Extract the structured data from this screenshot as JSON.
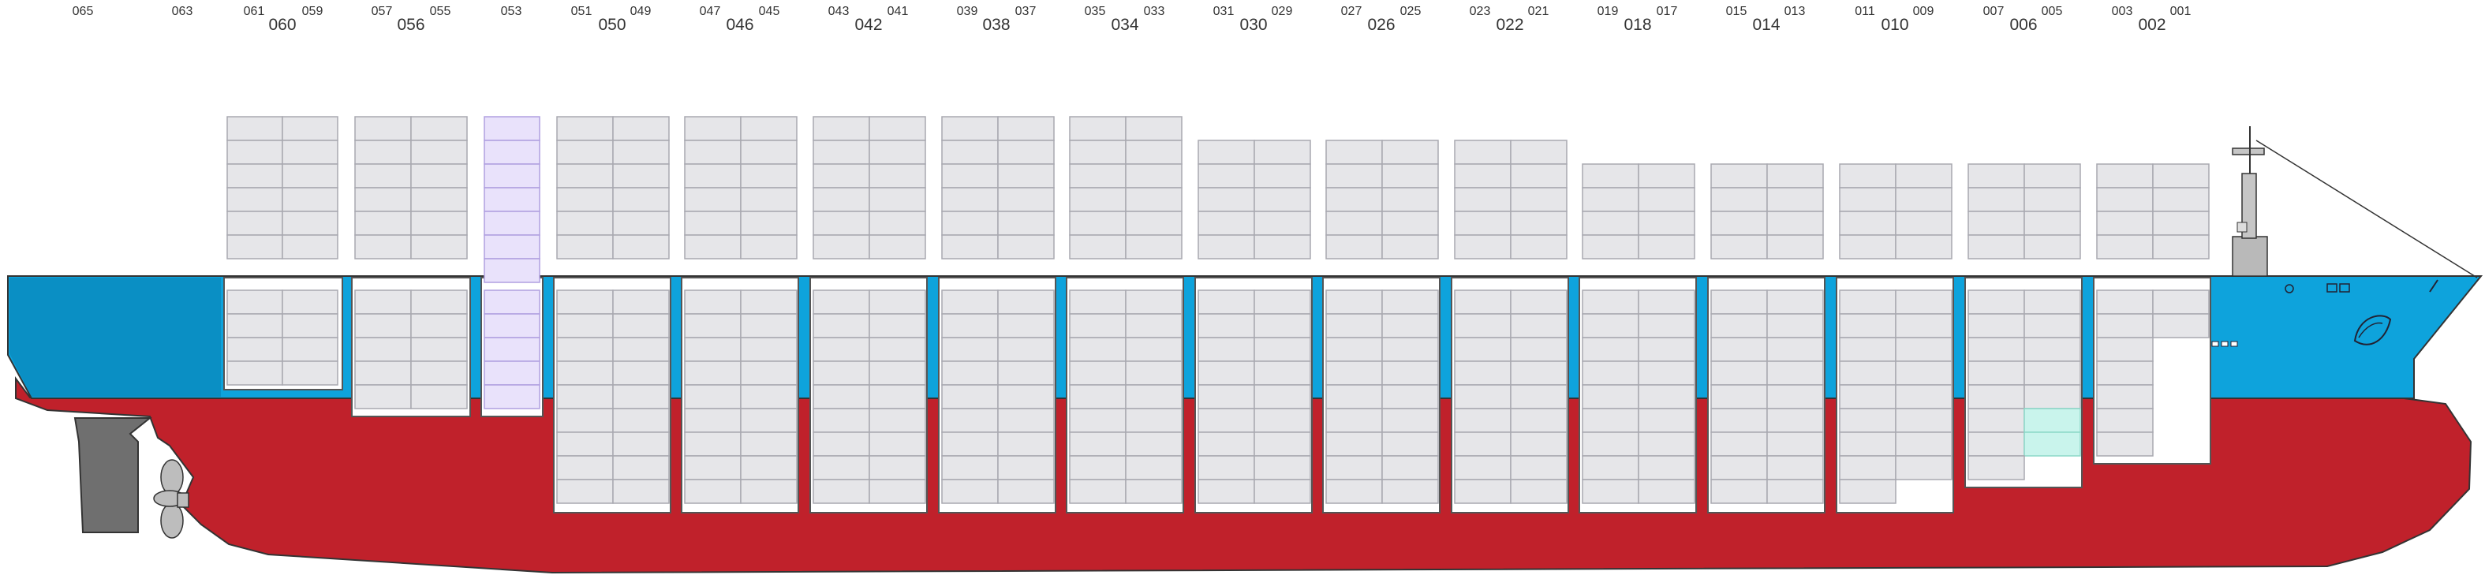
{
  "diagram": {
    "bays": [
      {
        "num_labels": [
          "065",
          ""
        ]
      },
      {
        "num_labels": [
          "063",
          ""
        ]
      },
      {
        "num_labels": [
          "061",
          "059"
        ],
        "main": "060"
      },
      {
        "num_labels": [
          "057",
          "055"
        ],
        "main": "056"
      },
      {
        "num_labels": [
          "053",
          ""
        ]
      },
      {
        "num_labels": [
          "051",
          "049"
        ],
        "main": "050"
      },
      {
        "num_labels": [
          "047",
          "045"
        ],
        "main": "046"
      },
      {
        "num_labels": [
          "043",
          "041"
        ],
        "main": "042"
      },
      {
        "num_labels": [
          "039",
          "037"
        ],
        "main": "038"
      },
      {
        "num_labels": [
          "035",
          "033"
        ],
        "main": "034"
      },
      {
        "num_labels": [
          "031",
          "029"
        ],
        "main": "030"
      },
      {
        "num_labels": [
          "027",
          "025"
        ],
        "main": "026"
      },
      {
        "num_labels": [
          "023",
          "021"
        ],
        "main": "022"
      },
      {
        "num_labels": [
          "019",
          "017"
        ],
        "main": "018"
      },
      {
        "num_labels": [
          "015",
          "013"
        ],
        "main": "014"
      },
      {
        "num_labels": [
          "011",
          "009"
        ],
        "main": "010"
      },
      {
        "num_labels": [
          "007",
          "005"
        ],
        "main": "006"
      },
      {
        "num_labels": [
          "003",
          "001"
        ],
        "main": "002"
      }
    ],
    "colors": {
      "hull_red": "#c0212b",
      "deck_blue": "#0ea3dc",
      "deck_blue_dark": "#0a8fc4",
      "container": "#e6e6e9",
      "container_highlight_violet": "#e9e2fb",
      "container_highlight_cyan": "#c9f4ec"
    }
  }
}
